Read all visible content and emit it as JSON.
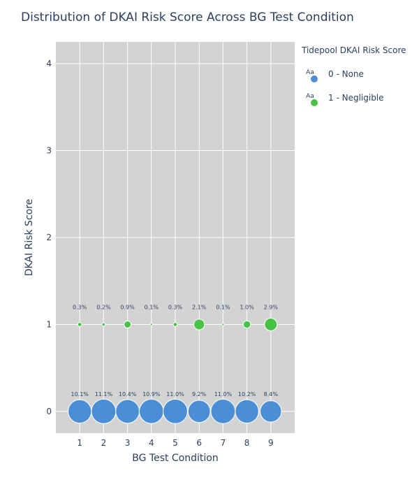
{
  "chart_data": {
    "type": "scatter",
    "title": "Distribution of DKAI Risk Score Across BG Test Condition",
    "xlabel": "BG Test Condition",
    "ylabel": "DKAI Risk Score",
    "x_ticks": [
      "1",
      "2",
      "3",
      "4",
      "5",
      "6",
      "7",
      "8",
      "9"
    ],
    "y_ticks": [
      "0",
      "1",
      "2",
      "3",
      "4"
    ],
    "xlim": [
      0,
      10
    ],
    "ylim": [
      -0.25,
      4.25
    ],
    "grid": true,
    "legend": {
      "title": "Tidepool DKAI Risk Score",
      "placement": "right",
      "marker_text": "Aa"
    },
    "series": [
      {
        "name": "0 - None",
        "color": "#4a8fd6",
        "x": [
          1,
          2,
          3,
          4,
          5,
          6,
          7,
          8,
          9
        ],
        "y": [
          0,
          0,
          0,
          0,
          0,
          0,
          0,
          0,
          0
        ],
        "percent": [
          10.1,
          11.1,
          10.4,
          10.9,
          11.0,
          9.2,
          11.0,
          10.2,
          8.4
        ],
        "labels": [
          "10.1%",
          "11.1%",
          "10.4%",
          "10.9%",
          "11.0%",
          "9.2%",
          "11.0%",
          "10.2%",
          "8.4%"
        ]
      },
      {
        "name": "1 - Negligible",
        "color": "#46c346",
        "x": [
          1,
          2,
          3,
          4,
          5,
          6,
          7,
          8,
          9
        ],
        "y": [
          1,
          1,
          1,
          1,
          1,
          1,
          1,
          1,
          1
        ],
        "percent": [
          0.3,
          0.2,
          0.9,
          0.1,
          0.3,
          2.1,
          0.1,
          1.0,
          2.9
        ],
        "labels": [
          "0.3%",
          "0.2%",
          "0.9%",
          "0.1%",
          "0.3%",
          "2.1%",
          "0.1%",
          "1.0%",
          "2.9%"
        ]
      }
    ]
  }
}
